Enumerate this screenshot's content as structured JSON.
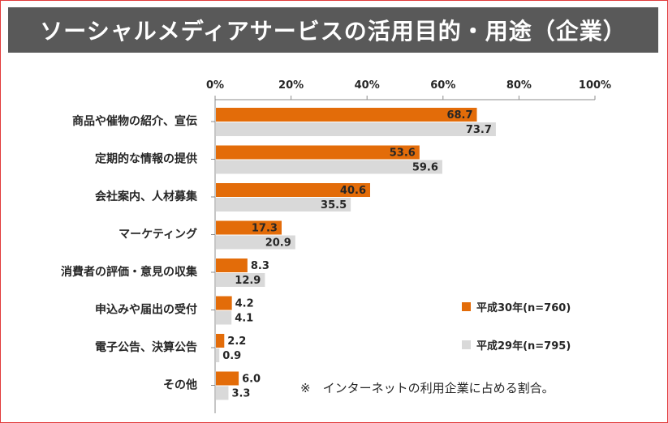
{
  "title": "ソーシャルメディアサービスの活用目的・用途（企業）",
  "colors": {
    "series_2018": "#e36c09",
    "series_2017": "#d9d9d9",
    "title_bg": "#595959"
  },
  "note": "※　インターネットの利用企業に占める割合。",
  "chart_data": {
    "type": "bar",
    "orientation": "horizontal",
    "categories": [
      "商品や催物の紹介、宣伝",
      "定期的な情報の提供",
      "会社案内、人材募集",
      "マーケティング",
      "消費者の評価・意見の収集",
      "申込みや届出の受付",
      "電子公告、決算公告",
      "その他"
    ],
    "series": [
      {
        "name": "平成30年(n=760)",
        "values": [
          68.7,
          53.6,
          40.6,
          17.3,
          8.3,
          4.2,
          2.2,
          6.0
        ],
        "value_labels": [
          "68.7",
          "53.6",
          "40.6",
          "17.3",
          "8.3",
          "4.2",
          "2.2",
          "6.0"
        ]
      },
      {
        "name": "平成29年(n=795)",
        "values": [
          73.7,
          59.6,
          35.5,
          20.9,
          12.9,
          4.1,
          0.9,
          3.3
        ],
        "value_labels": [
          "73.7",
          "59.6",
          "35.5",
          "20.9",
          "12.9",
          "4.1",
          "0.9",
          "3.3"
        ]
      }
    ],
    "xlim": [
      0,
      100
    ],
    "xticks": [
      "0%",
      "20%",
      "40%",
      "60%",
      "80%",
      "100%"
    ],
    "xlabel": "",
    "ylabel": "",
    "legend_position": "right"
  }
}
